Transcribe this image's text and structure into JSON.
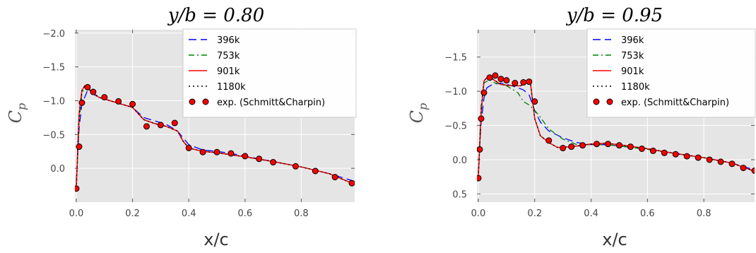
{
  "chart_data": [
    {
      "type": "line",
      "title": "y/b = 0.80",
      "xlabel": "x/c",
      "ylabel": "C_p",
      "xlim": [
        -0.005,
        0.99
      ],
      "ylim": [
        0.5,
        -2.05
      ],
      "y_inverted": true,
      "xticks": [
        "0.0",
        "0.2",
        "0.4",
        "0.6",
        "0.8"
      ],
      "xtick_values": [
        0.0,
        0.2,
        0.4,
        0.6,
        0.8
      ],
      "yticks": [
        "−2.0",
        "−1.5",
        "−1.0",
        "−0.5",
        "0.0"
      ],
      "ytick_values": [
        -2.0,
        -1.5,
        -1.0,
        -0.5,
        0.0
      ],
      "grid": true,
      "legend_position": "upper-right",
      "series": [
        {
          "name": "396k",
          "style": "dashed",
          "color": "#0000ff",
          "x": [
            0.0,
            0.005,
            0.01,
            0.02,
            0.04,
            0.05,
            0.08,
            0.12,
            0.16,
            0.2,
            0.24,
            0.28,
            0.32,
            0.36,
            0.4,
            0.45,
            0.5,
            0.55,
            0.6,
            0.7,
            0.8,
            0.9,
            0.98
          ],
          "y": [
            0.2,
            -0.2,
            -0.6,
            -0.95,
            -1.15,
            -1.12,
            -1.05,
            -1.0,
            -0.95,
            -0.9,
            -0.75,
            -0.7,
            -0.65,
            -0.55,
            -0.35,
            -0.27,
            -0.25,
            -0.22,
            -0.18,
            -0.1,
            -0.02,
            0.08,
            0.18
          ]
        },
        {
          "name": "753k",
          "style": "dashdot",
          "color": "#008000",
          "x": [
            0.0,
            0.005,
            0.01,
            0.02,
            0.03,
            0.05,
            0.08,
            0.12,
            0.16,
            0.2,
            0.24,
            0.28,
            0.32,
            0.36,
            0.38,
            0.4,
            0.45,
            0.5,
            0.55,
            0.6,
            0.7,
            0.8,
            0.9,
            0.98
          ],
          "y": [
            0.3,
            -0.2,
            -0.7,
            -1.1,
            -1.2,
            -1.15,
            -1.05,
            -1.0,
            -0.95,
            -0.9,
            -0.72,
            -0.66,
            -0.62,
            -0.55,
            -0.4,
            -0.3,
            -0.25,
            -0.23,
            -0.2,
            -0.17,
            -0.1,
            -0.02,
            0.08,
            0.22
          ]
        },
        {
          "name": "901k",
          "style": "solid",
          "color": "#ff0000",
          "x": [
            0.0,
            0.005,
            0.01,
            0.02,
            0.03,
            0.05,
            0.08,
            0.12,
            0.16,
            0.2,
            0.24,
            0.28,
            0.32,
            0.36,
            0.38,
            0.4,
            0.45,
            0.5,
            0.55,
            0.6,
            0.7,
            0.8,
            0.9,
            0.98
          ],
          "y": [
            0.3,
            -0.3,
            -0.8,
            -1.15,
            -1.22,
            -1.15,
            -1.05,
            -1.0,
            -0.95,
            -0.9,
            -0.72,
            -0.66,
            -0.62,
            -0.55,
            -0.4,
            -0.3,
            -0.25,
            -0.23,
            -0.2,
            -0.17,
            -0.1,
            -0.02,
            0.08,
            0.22
          ]
        },
        {
          "name": "1180k",
          "style": "dotted",
          "color": "#000000",
          "x": [
            0.0,
            0.005,
            0.01,
            0.02,
            0.03,
            0.05,
            0.08,
            0.12,
            0.16,
            0.2,
            0.24,
            0.28,
            0.32,
            0.36,
            0.38,
            0.4,
            0.45,
            0.5,
            0.55,
            0.6,
            0.7,
            0.8,
            0.9,
            0.98
          ],
          "y": [
            0.3,
            -0.3,
            -0.8,
            -1.15,
            -1.22,
            -1.15,
            -1.05,
            -1.0,
            -0.95,
            -0.9,
            -0.72,
            -0.66,
            -0.62,
            -0.55,
            -0.4,
            -0.3,
            -0.25,
            -0.23,
            -0.2,
            -0.17,
            -0.1,
            -0.02,
            0.08,
            0.22
          ]
        },
        {
          "name": "exp. (Schmitt&Charpin)",
          "style": "markers",
          "color": "#ff0000",
          "x": [
            0.0,
            0.01,
            0.02,
            0.04,
            0.06,
            0.1,
            0.15,
            0.2,
            0.25,
            0.3,
            0.35,
            0.4,
            0.45,
            0.5,
            0.55,
            0.6,
            0.65,
            0.7,
            0.78,
            0.85,
            0.92,
            0.98
          ],
          "y": [
            0.3,
            -0.32,
            -0.97,
            -1.2,
            -1.13,
            -1.05,
            -0.99,
            -0.95,
            -0.62,
            -0.64,
            -0.67,
            -0.3,
            -0.24,
            -0.24,
            -0.22,
            -0.18,
            -0.14,
            -0.09,
            -0.03,
            0.04,
            0.13,
            0.22
          ]
        }
      ],
      "legend": [
        "396k",
        "753k",
        "901k",
        "1180k",
        "exp. (Schmitt&Charpin)"
      ]
    },
    {
      "type": "line",
      "title": "y/b = 0.95",
      "xlabel": "x/c",
      "ylabel": "C_p",
      "xlim": [
        -0.005,
        0.98
      ],
      "ylim": [
        0.62,
        -1.9
      ],
      "y_inverted": true,
      "xticks": [
        "0.0",
        "0.2",
        "0.4",
        "0.6",
        "0.8"
      ],
      "xtick_values": [
        0.0,
        0.2,
        0.4,
        0.6,
        0.8
      ],
      "yticks": [
        "−1.5",
        "−1.0",
        "−0.5",
        "0.0",
        "0.5"
      ],
      "ytick_values": [
        -1.5,
        -1.0,
        -0.5,
        0.0,
        0.5
      ],
      "grid": true,
      "legend_position": "upper-right",
      "series": [
        {
          "name": "396k",
          "style": "dashed",
          "color": "#0000ff",
          "x": [
            0.0,
            0.005,
            0.01,
            0.02,
            0.03,
            0.05,
            0.08,
            0.12,
            0.16,
            0.18,
            0.2,
            0.22,
            0.25,
            0.3,
            0.35,
            0.4,
            0.45,
            0.5,
            0.6,
            0.7,
            0.8,
            0.9,
            0.98
          ],
          "y": [
            0.2,
            -0.2,
            -0.55,
            -0.9,
            -1.05,
            -1.1,
            -1.12,
            -1.08,
            -1.02,
            -0.95,
            -0.72,
            -0.55,
            -0.42,
            -0.32,
            -0.25,
            -0.22,
            -0.22,
            -0.2,
            -0.15,
            -0.09,
            -0.03,
            0.05,
            0.15
          ]
        },
        {
          "name": "753k",
          "style": "dashdot",
          "color": "#008000",
          "x": [
            0.0,
            0.005,
            0.01,
            0.02,
            0.04,
            0.06,
            0.1,
            0.14,
            0.16,
            0.18,
            0.2,
            0.22,
            0.25,
            0.3,
            0.35,
            0.4,
            0.45,
            0.5,
            0.6,
            0.7,
            0.8,
            0.9,
            0.98
          ],
          "y": [
            0.2,
            -0.3,
            -0.8,
            -1.12,
            -1.17,
            -1.12,
            -1.08,
            -0.98,
            -0.85,
            -0.8,
            -0.72,
            -0.62,
            -0.45,
            -0.3,
            -0.22,
            -0.22,
            -0.22,
            -0.2,
            -0.15,
            -0.09,
            -0.03,
            0.05,
            0.17
          ]
        },
        {
          "name": "901k",
          "style": "solid",
          "color": "#ff0000",
          "x": [
            0.0,
            0.005,
            0.01,
            0.02,
            0.03,
            0.05,
            0.08,
            0.12,
            0.15,
            0.17,
            0.185,
            0.2,
            0.22,
            0.25,
            0.28,
            0.3,
            0.35,
            0.4,
            0.45,
            0.5,
            0.6,
            0.7,
            0.8,
            0.9,
            0.98
          ],
          "y": [
            0.25,
            -0.2,
            -0.7,
            -1.15,
            -1.2,
            -1.18,
            -1.1,
            -1.08,
            -1.08,
            -1.12,
            -1.12,
            -0.6,
            -0.35,
            -0.25,
            -0.18,
            -0.18,
            -0.2,
            -0.23,
            -0.24,
            -0.22,
            -0.16,
            -0.09,
            -0.03,
            0.05,
            0.17
          ]
        },
        {
          "name": "1180k",
          "style": "dotted",
          "color": "#000000",
          "x": [
            0.0,
            0.005,
            0.01,
            0.02,
            0.03,
            0.05,
            0.08,
            0.12,
            0.15,
            0.17,
            0.185,
            0.2,
            0.22,
            0.25,
            0.28,
            0.3,
            0.35,
            0.4,
            0.45,
            0.5,
            0.6,
            0.7,
            0.8,
            0.9,
            0.98
          ],
          "y": [
            0.25,
            -0.2,
            -0.7,
            -1.15,
            -1.2,
            -1.18,
            -1.1,
            -1.08,
            -1.08,
            -1.12,
            -1.12,
            -0.6,
            -0.35,
            -0.25,
            -0.18,
            -0.18,
            -0.2,
            -0.23,
            -0.24,
            -0.22,
            -0.16,
            -0.09,
            -0.03,
            0.05,
            0.17
          ]
        },
        {
          "name": "exp. (Schmitt&Charpin)",
          "style": "markers",
          "color": "#ff0000",
          "x": [
            0.0,
            0.005,
            0.01,
            0.02,
            0.04,
            0.06,
            0.08,
            0.1,
            0.13,
            0.16,
            0.18,
            0.2,
            0.25,
            0.3,
            0.33,
            0.37,
            0.42,
            0.46,
            0.5,
            0.54,
            0.58,
            0.62,
            0.66,
            0.7,
            0.74,
            0.78,
            0.82,
            0.86,
            0.9,
            0.94,
            0.98
          ],
          "y": [
            0.27,
            -0.15,
            -0.6,
            -0.98,
            -1.2,
            -1.23,
            -1.18,
            -1.16,
            -1.12,
            -1.13,
            -1.14,
            -0.85,
            -0.28,
            -0.17,
            -0.19,
            -0.21,
            -0.23,
            -0.23,
            -0.21,
            -0.19,
            -0.16,
            -0.13,
            -0.1,
            -0.08,
            -0.05,
            -0.03,
            0.0,
            0.03,
            0.06,
            0.12,
            0.16
          ]
        }
      ],
      "legend": [
        "396k",
        "753k",
        "901k",
        "1180k",
        "exp. (Schmitt&Charpin)"
      ]
    }
  ],
  "colors": {
    "plot_background": "#e5e5e5",
    "grid": "#ffffff"
  }
}
